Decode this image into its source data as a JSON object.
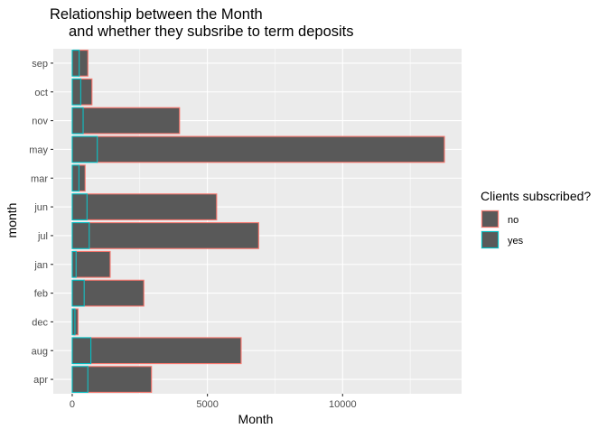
{
  "chart_data": {
    "type": "bar",
    "orientation": "horizontal",
    "stacked": true,
    "title_line1": "Relationship between the Month",
    "title_line2": "and whether they subsribe to term deposits",
    "xlabel": "Month",
    "ylabel": "month",
    "xlim": [
      -700,
      14400
    ],
    "x_ticks": [
      0,
      5000,
      10000
    ],
    "x_tick_labels": [
      "0",
      "5000",
      "10000"
    ],
    "categories": [
      "apr",
      "aug",
      "dec",
      "feb",
      "jan",
      "jul",
      "jun",
      "mar",
      "may",
      "nov",
      "oct",
      "sep"
    ],
    "series": [
      {
        "name": "yes",
        "values": [
          577,
          688,
          100,
          441,
          142,
          627,
          546,
          248,
          925,
          403,
          315,
          256
        ]
      },
      {
        "name": "no",
        "values": [
          2355,
          5559,
          114,
          2208,
          1261,
          6268,
          4795,
          229,
          12841,
          3567,
          415,
          323
        ]
      }
    ],
    "fill_color": "#595959",
    "panel_color": "#ebebeb",
    "legend": {
      "title": "Clients subscribed?",
      "position": "right",
      "entries": [
        {
          "label": "no",
          "color": "#f8766d"
        },
        {
          "label": "yes",
          "color": "#00bfc4"
        }
      ]
    }
  }
}
